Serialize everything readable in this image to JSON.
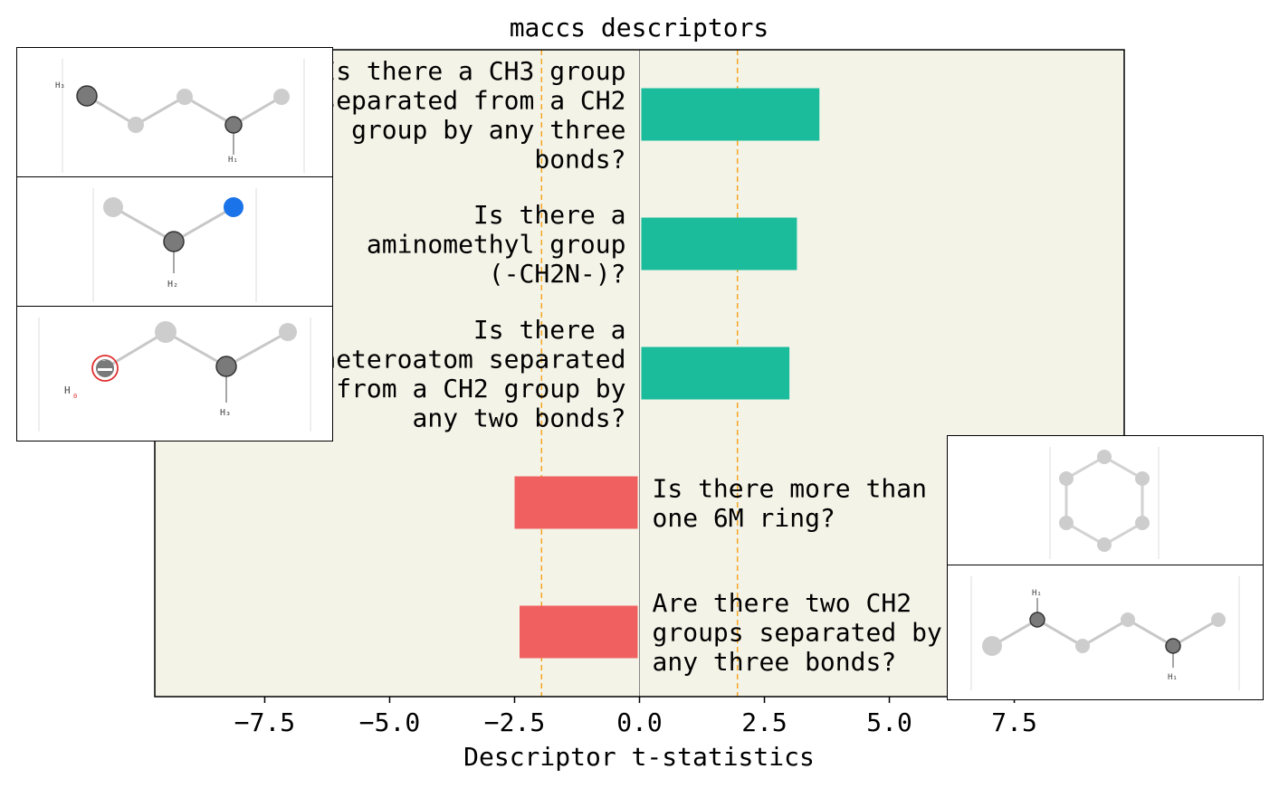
{
  "chart_data": {
    "type": "bar",
    "orientation": "horizontal",
    "title": "maccs descriptors",
    "xlabel": "Descriptor t-statistics",
    "ylabel": "",
    "xlim": [
      -9.7,
      9.7
    ],
    "xticks": [
      -7.5,
      -5.0,
      -2.5,
      0.0,
      2.5,
      5.0,
      7.5
    ],
    "xtick_labels": [
      "−7.5",
      "−5.0",
      "−2.5",
      "0.0",
      "2.5",
      "5.0",
      "7.5"
    ],
    "threshold_lines": [
      -1.96,
      1.96
    ],
    "grid": false,
    "categories": [
      "Is there a CH3 group separated from a CH2 group by any three bonds?",
      "Is there a aminomethyl group (-CH2N-)?",
      "Is there a heteroatom separated from a CH2 group by any two bonds?",
      "Is there more than one 6M ring?",
      "Are there two CH2 groups separated by any three bonds?"
    ],
    "label_lines": [
      [
        "Is there a CH3 group",
        "separated from a CH2",
        "group by any three",
        "bonds?"
      ],
      [
        "Is there a",
        "aminomethyl group",
        "(-CH2N-)?"
      ],
      [
        "Is there a",
        "heteroatom separated",
        "from a CH2 group by",
        "any two bonds?"
      ],
      [
        "Is there more than",
        "one 6M ring?"
      ],
      [
        "Are there two CH2",
        "groups separated by",
        "any three bonds?"
      ]
    ],
    "values": [
      3.6,
      3.15,
      3.0,
      -2.5,
      -2.4
    ]
  },
  "colors": {
    "plot_background": "#f3f3e8",
    "positive_bar": "#1abc9c",
    "negative_bar": "#f06060",
    "threshold_line": "#f5a623",
    "zero_line": "#888888",
    "atom_carbon_dark": "#7a7a7a",
    "atom_carbon_light": "#cdcdcd",
    "atom_nitrogen": "#1a73e8",
    "atom_oxygen": "#e03030"
  },
  "molecule_images": [
    {
      "icon": "molecule-ch3-ch2-three-bonds-icon",
      "h_labels": [
        "H₃",
        "H₁"
      ]
    },
    {
      "icon": "molecule-aminomethyl-icon",
      "h_labels": [
        "H₂"
      ]
    },
    {
      "icon": "molecule-heteroatom-ch2-icon",
      "h_labels": [
        "H",
        "H₃"
      ],
      "charge": "−"
    },
    {
      "icon": "molecule-benzene-ring-icon",
      "h_labels": []
    },
    {
      "icon": "molecule-two-ch2-three-bonds-icon",
      "h_labels": [
        "H₁",
        "H₁"
      ]
    }
  ]
}
